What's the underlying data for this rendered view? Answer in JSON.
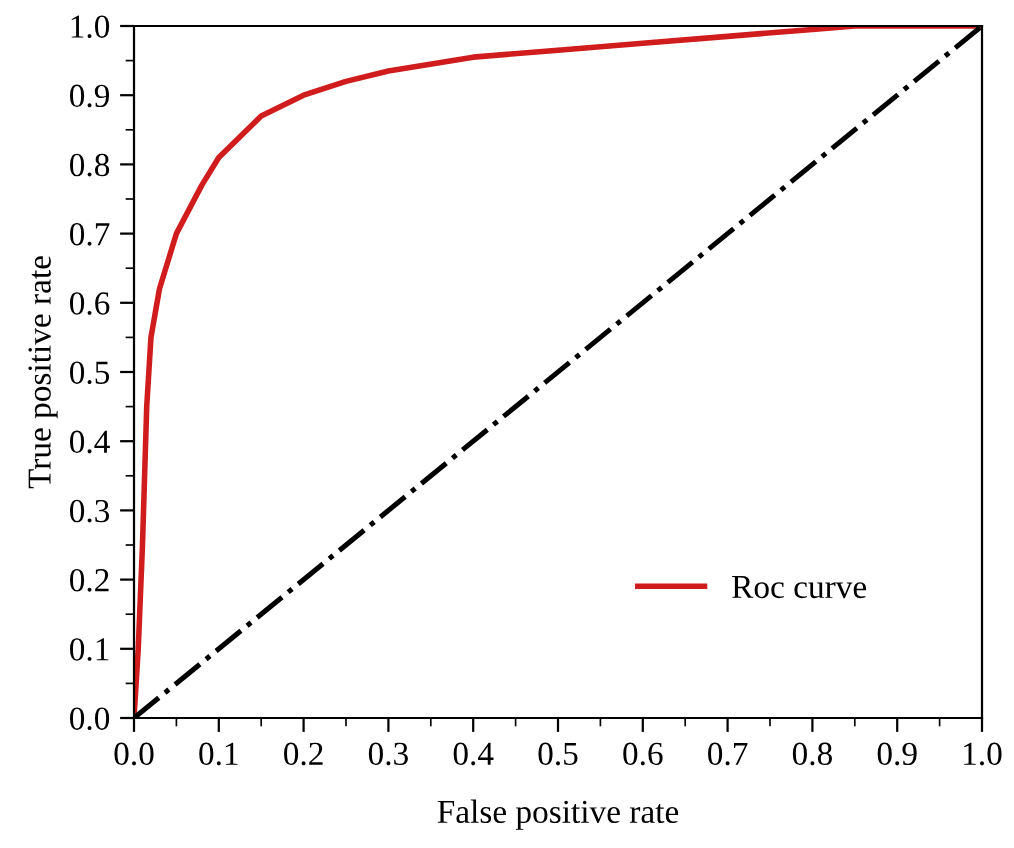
{
  "chart_data": {
    "type": "line",
    "xlabel": "False positive rate",
    "ylabel": "True positive rate",
    "xlim": [
      0,
      1
    ],
    "ylim": [
      0,
      1
    ],
    "xticks": [
      {
        "value": 0,
        "label": "0.0"
      },
      0.1,
      0.2,
      0.3,
      0.4,
      0.5,
      0.6,
      0.7,
      0.8,
      0.9,
      {
        "value": 1,
        "label": "1.0"
      }
    ],
    "yticks": [
      {
        "value": 0,
        "label": "0.0"
      },
      0.1,
      0.2,
      0.3,
      0.4,
      0.5,
      0.6,
      0.7,
      0.8,
      0.9,
      {
        "value": 1,
        "label": "1.0"
      }
    ],
    "grid": false,
    "legend": "lower right",
    "marker": "none",
    "series": [
      {
        "name": "Roc curve",
        "color": "#d01c1c",
        "line_style": "solid",
        "x": [
          0,
          0.005,
          0.01,
          0.015,
          0.02,
          0.03,
          0.05,
          0.08,
          0.1,
          0.15,
          0.2,
          0.25,
          0.3,
          0.4,
          0.5,
          0.6,
          0.7,
          0.8,
          0.85,
          1.0
        ],
        "values": [
          0,
          0.1,
          0.25,
          0.45,
          0.55,
          0.62,
          0.7,
          0.77,
          0.81,
          0.87,
          0.9,
          0.92,
          0.935,
          0.955,
          0.965,
          0.975,
          0.985,
          0.995,
          1.0,
          1.0
        ]
      },
      {
        "color": "#000000",
        "line_style": "dashdot",
        "x": [
          0,
          1
        ],
        "values": [
          0,
          1
        ]
      }
    ]
  }
}
